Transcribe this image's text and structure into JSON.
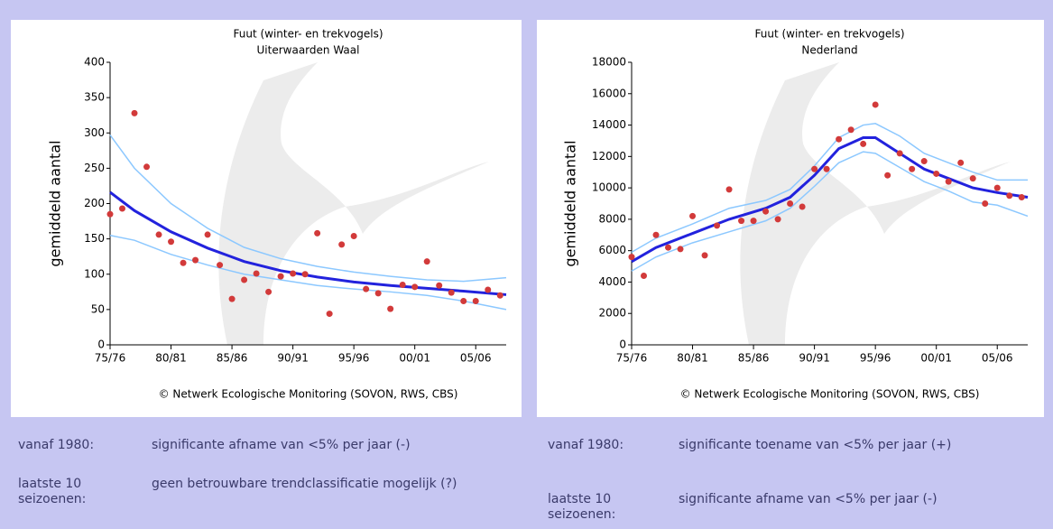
{
  "chart_data": [
    {
      "type": "scatter",
      "title": "Fuut (winter- en trekvogels)",
      "subtitle": "Uiterwaarden Waal",
      "ylabel": "gemiddeld aantal",
      "source": "© Netwerk Ecologische Monitoring (SOVON, RWS, CBS)",
      "xlim": [
        1975,
        2007.5
      ],
      "ylim": [
        0,
        400
      ],
      "yticks": [
        0,
        50,
        100,
        150,
        200,
        250,
        300,
        350,
        400
      ],
      "xticks": [
        {
          "value": 1975,
          "label": "75/76"
        },
        {
          "value": 1980,
          "label": "80/81"
        },
        {
          "value": 1985,
          "label": "85/86"
        },
        {
          "value": 1990,
          "label": "90/91"
        },
        {
          "value": 1995,
          "label": "95/96"
        },
        {
          "value": 2000,
          "label": "00/01"
        },
        {
          "value": 2005,
          "label": "05/06"
        }
      ],
      "series": [
        {
          "mode": "lines",
          "color": "#8cc8ff",
          "x": [
            1975,
            1977,
            1980,
            1983,
            1986,
            1989,
            1992,
            1995,
            1998,
            2001,
            2004,
            2007.5
          ],
          "values": [
            297,
            250,
            200,
            165,
            138,
            122,
            111,
            103,
            97,
            92,
            90,
            95
          ]
        },
        {
          "mode": "lines",
          "color": "#8cc8ff",
          "x": [
            1975,
            1977,
            1980,
            1983,
            1986,
            1989,
            1992,
            1995,
            1998,
            2001,
            2004,
            2007.5
          ],
          "values": [
            155,
            148,
            128,
            113,
            100,
            92,
            84,
            79,
            75,
            70,
            62,
            50
          ]
        },
        {
          "mode": "lines",
          "color": "#2222dd",
          "x": [
            1975,
            1977,
            1980,
            1983,
            1986,
            1989,
            1992,
            1995,
            1998,
            2001,
            2004,
            2007.5
          ],
          "values": [
            216,
            190,
            160,
            137,
            118,
            105,
            96,
            89,
            84,
            80,
            76,
            71
          ]
        },
        {
          "mode": "markers",
          "color": "#d23a3a",
          "x": [
            1975,
            1976,
            1977,
            1978,
            1979,
            1980,
            1981,
            1982,
            1983,
            1984,
            1985,
            1986,
            1987,
            1988,
            1989,
            1990,
            1991,
            1992,
            1993,
            1994,
            1995,
            1996,
            1997,
            1998,
            1999,
            2000,
            2001,
            2002,
            2003,
            2004,
            2005,
            2006,
            2007
          ],
          "values": [
            185,
            193,
            328,
            252,
            156,
            146,
            116,
            120,
            156,
            113,
            65,
            92,
            101,
            75,
            97,
            101,
            100,
            158,
            44,
            142,
            154,
            79,
            73,
            51,
            85,
            82,
            118,
            84,
            74,
            62,
            62,
            78,
            70
          ]
        }
      ]
    },
    {
      "type": "scatter",
      "title": "Fuut (winter- en trekvogels)",
      "subtitle": "Nederland",
      "ylabel": "gemiddeld aantal",
      "source": "© Netwerk Ecologische Monitoring (SOVON, RWS, CBS)",
      "xlim": [
        1975,
        2007.5
      ],
      "ylim": [
        0,
        18000
      ],
      "yticks": [
        0,
        2000,
        4000,
        6000,
        8000,
        10000,
        12000,
        14000,
        16000,
        18000
      ],
      "xticks": [
        {
          "value": 1975,
          "label": "75/76"
        },
        {
          "value": 1980,
          "label": "80/81"
        },
        {
          "value": 1985,
          "label": "85/86"
        },
        {
          "value": 1990,
          "label": "90/91"
        },
        {
          "value": 1995,
          "label": "95/96"
        },
        {
          "value": 2000,
          "label": "00/01"
        },
        {
          "value": 2005,
          "label": "05/06"
        }
      ],
      "series": [
        {
          "mode": "lines",
          "color": "#8cc8ff",
          "x": [
            1975,
            1977,
            1980,
            1983,
            1986,
            1988,
            1990,
            1992,
            1994,
            1995,
            1997,
            1999,
            2001,
            2003,
            2005,
            2007.5
          ],
          "values": [
            5900,
            6800,
            7700,
            8700,
            9200,
            9900,
            11400,
            13200,
            14000,
            14100,
            13300,
            12200,
            11600,
            11000,
            10500,
            10500
          ]
        },
        {
          "mode": "lines",
          "color": "#8cc8ff",
          "x": [
            1975,
            1977,
            1980,
            1983,
            1986,
            1988,
            1990,
            1992,
            1994,
            1995,
            1997,
            1999,
            2001,
            2003,
            2005,
            2007.5
          ],
          "values": [
            4700,
            5600,
            6500,
            7200,
            7900,
            8700,
            10100,
            11600,
            12300,
            12200,
            11300,
            10400,
            9800,
            9100,
            8900,
            8200
          ]
        },
        {
          "mode": "lines",
          "color": "#2222dd",
          "x": [
            1975,
            1977,
            1980,
            1983,
            1986,
            1988,
            1990,
            1992,
            1994,
            1995,
            1997,
            1999,
            2001,
            2003,
            2005,
            2007.5
          ],
          "values": [
            5300,
            6200,
            7100,
            8000,
            8700,
            9400,
            10800,
            12500,
            13200,
            13200,
            12200,
            11200,
            10600,
            10000,
            9700,
            9400
          ]
        },
        {
          "mode": "markers",
          "color": "#d23a3a",
          "x": [
            1975,
            1976,
            1977,
            1978,
            1979,
            1980,
            1981,
            1982,
            1983,
            1984,
            1985,
            1986,
            1987,
            1988,
            1989,
            1990,
            1991,
            1992,
            1993,
            1994,
            1995,
            1996,
            1997,
            1998,
            1999,
            2000,
            2001,
            2002,
            2003,
            2004,
            2005,
            2006,
            2007
          ],
          "values": [
            5600,
            4400,
            7000,
            6200,
            6100,
            8200,
            5700,
            7600,
            9900,
            7900,
            7900,
            8500,
            8000,
            9000,
            8800,
            11200,
            11200,
            13100,
            13700,
            12800,
            15300,
            10800,
            12200,
            11200,
            11700,
            10900,
            10400,
            11600,
            10600,
            9000,
            10000,
            9500,
            9400
          ]
        }
      ]
    }
  ],
  "trends": [
    {
      "rows": [
        {
          "label": "vanaf 1980:",
          "text": "significante afname van <5% per jaar (-)"
        },
        {
          "label": "laatste 10 seizoenen:",
          "text": "geen betrouwbare trendclassificatie mogelijk (?)"
        }
      ]
    },
    {
      "rows": [
        {
          "label": "vanaf 1980:",
          "text": "significante toename van <5% per jaar (+)"
        },
        {
          "label": "laatste 10 seizoenen:",
          "text": "significante afname van <5% per jaar (-)"
        }
      ]
    }
  ]
}
